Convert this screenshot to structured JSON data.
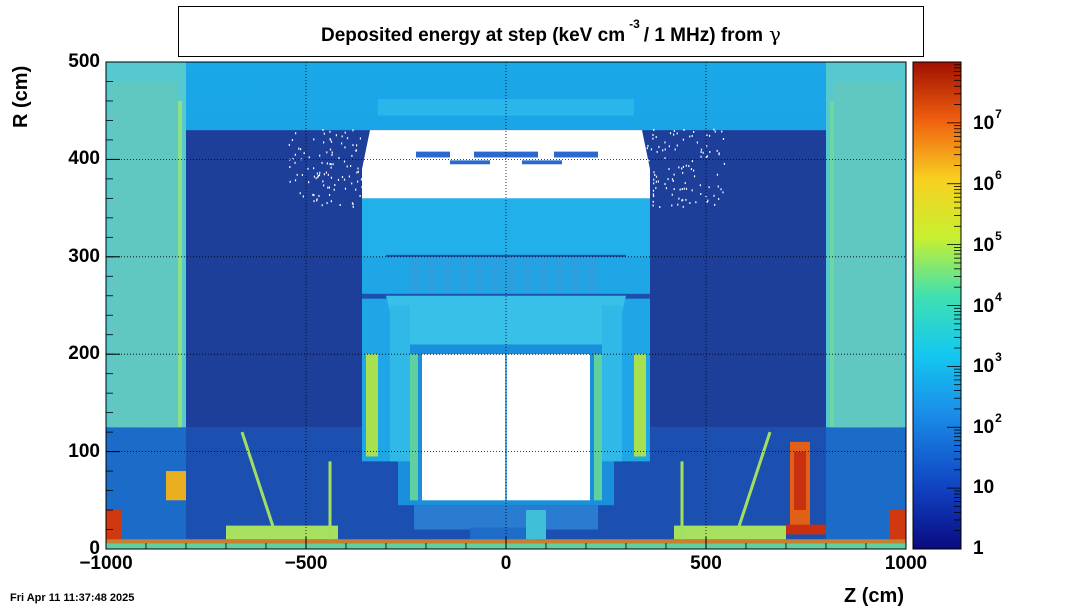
{
  "chart_data": {
    "type": "heatmap",
    "title_main": "Deposited energy at step (keV cm",
    "title_exp": "-3",
    "title_rest": "/ 1 MHz)  from",
    "title_particle": "γ",
    "xlabel": "Z (cm)",
    "ylabel": "R (cm)",
    "xlim": [
      -1000,
      1000
    ],
    "ylim": [
      0,
      500
    ],
    "x_ticks": [
      "−1000",
      "−500",
      "0",
      "500",
      "1000"
    ],
    "x_tick_values": [
      -1000,
      -500,
      0,
      500,
      1000
    ],
    "y_ticks": [
      "500",
      "400",
      "300",
      "200",
      "100",
      "0"
    ],
    "y_tick_values": [
      500,
      400,
      300,
      200,
      100,
      0
    ],
    "colorbar": {
      "scale": "log",
      "range": [
        1,
        100000000
      ],
      "labels": [
        {
          "base": "1",
          "exp": "",
          "value": 1
        },
        {
          "base": "10",
          "exp": "",
          "value": 10
        },
        {
          "base": "10",
          "exp": "2",
          "value": 100
        },
        {
          "base": "10",
          "exp": "3",
          "value": 1000
        },
        {
          "base": "10",
          "exp": "4",
          "value": 10000
        },
        {
          "base": "10",
          "exp": "5",
          "value": 100000
        },
        {
          "base": "10",
          "exp": "6",
          "value": 1000000
        },
        {
          "base": "10",
          "exp": "7",
          "value": 10000000
        }
      ]
    },
    "grid": true,
    "colors": {
      "low": "#1a2a8a",
      "mid": "#1ab0e8",
      "high": "#c8e83a",
      "peak": "#c81e00",
      "empty": "#ffffff"
    }
  },
  "footer": {
    "timestamp": "Fri Apr 11 11:37:48 2025"
  }
}
